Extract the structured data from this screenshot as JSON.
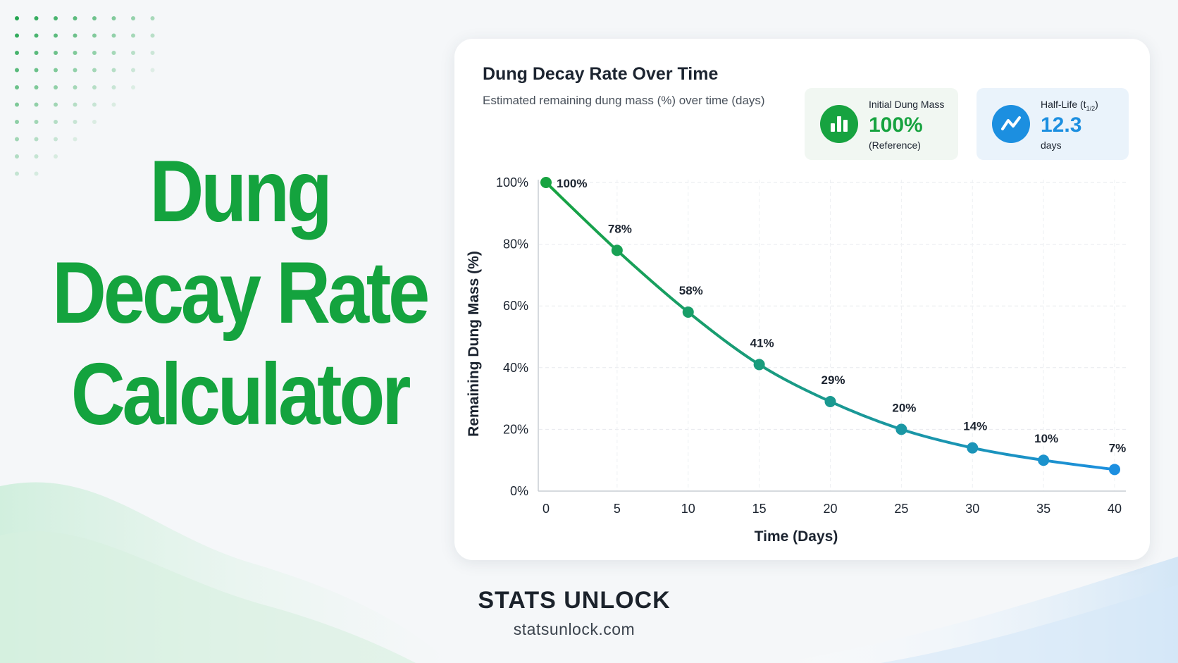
{
  "hero": {
    "line1": "Dung",
    "line2": "Decay Rate",
    "line3": "Calculator"
  },
  "card": {
    "title": "Dung Decay Rate Over Time",
    "subtitle": "Estimated remaining dung mass (%) over time (days)"
  },
  "stats": {
    "initial": {
      "label": "Initial Dung Mass",
      "value": "100%",
      "note": "(Reference)",
      "icon": "bar-chart-icon"
    },
    "half_life": {
      "label": "Half-Life (t",
      "label_sub": "1/2",
      "label_end": ")",
      "value": "12.3",
      "note": "days",
      "icon": "trend-line-icon"
    }
  },
  "chart_data": {
    "type": "line",
    "title": "Dung Decay Rate Over Time",
    "subtitle": "Estimated remaining dung mass (%) over time (days)",
    "xlabel": "Time (Days)",
    "ylabel": "Remaining Dung Mass (%)",
    "x": [
      0,
      5,
      10,
      15,
      20,
      25,
      30,
      35,
      40
    ],
    "series": [
      {
        "values": [
          100,
          78,
          58,
          41,
          29,
          20,
          14,
          10,
          7
        ]
      }
    ],
    "data_labels": [
      "100%",
      "78%",
      "58%",
      "41%",
      "29%",
      "20%",
      "14%",
      "10%",
      "7%"
    ],
    "xlim": [
      0,
      40
    ],
    "ylim": [
      0,
      100
    ],
    "xticks": [
      0,
      5,
      10,
      15,
      20,
      25,
      30,
      35,
      40
    ],
    "yticks": [
      0,
      20,
      40,
      60,
      80,
      100
    ],
    "ytick_labels": [
      "0%",
      "20%",
      "40%",
      "60%",
      "80%",
      "100%"
    ],
    "grid": true,
    "colors": {
      "start": "#17a340",
      "end": "#1c8fe0"
    }
  },
  "footer": {
    "brand": "STATS UNLOCK",
    "site": "statsunlock.com"
  }
}
